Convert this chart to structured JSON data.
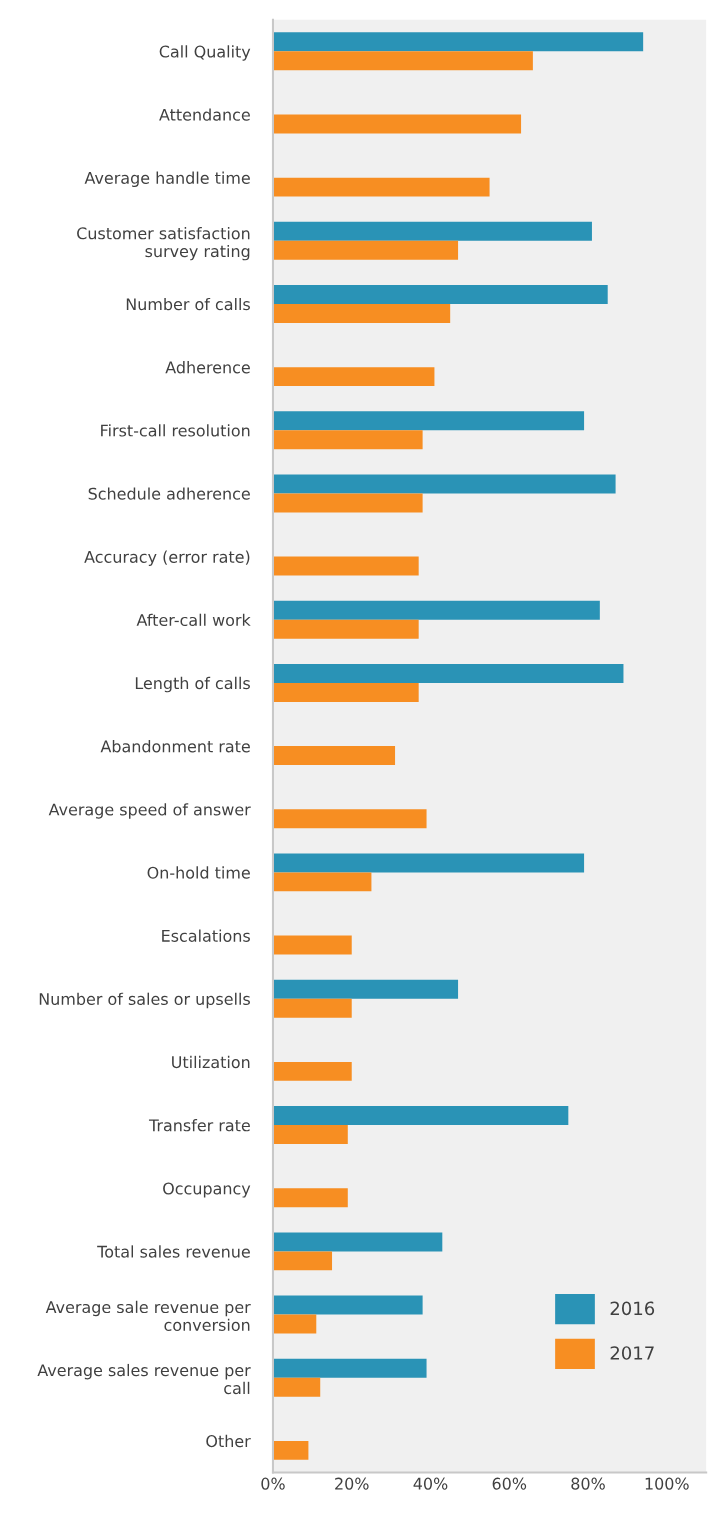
{
  "chart_data": {
    "type": "bar",
    "orientation": "horizontal",
    "categories": [
      "Call Quality",
      "Attendance",
      "Average handle time",
      "Customer satisfaction\nsurvey rating",
      "Number of calls",
      "Adherence",
      "First-call resolution",
      "Schedule adherence",
      "Accuracy (error rate)",
      "After-call work",
      "Length of calls",
      "Abandonment rate",
      "Average speed of answer",
      "On-hold time",
      "Escalations",
      "Number of sales or upsells",
      "Utilization",
      "Transfer rate",
      "Occupancy",
      "Total sales revenue",
      "Average sale revenue per\nconversion",
      "Average sales revenue per\ncall",
      "Other"
    ],
    "series": [
      {
        "name": "2016",
        "color": "#2a93b6",
        "values": [
          94,
          null,
          null,
          81,
          85,
          null,
          79,
          87,
          null,
          83,
          89,
          null,
          null,
          79,
          null,
          47,
          null,
          75,
          null,
          43,
          38,
          39,
          null
        ]
      },
      {
        "name": "2017",
        "color": "#f78e22",
        "values": [
          66,
          63,
          55,
          47,
          45,
          41,
          38,
          38,
          37,
          37,
          37,
          31,
          39,
          25,
          20,
          20,
          20,
          19,
          19,
          15,
          11,
          12,
          9
        ]
      }
    ],
    "xlim": [
      0,
      110
    ],
    "xticks": [
      {
        "value": 0,
        "label": "0%"
      },
      {
        "value": 20,
        "label": "20%"
      },
      {
        "value": 40,
        "label": "40%"
      },
      {
        "value": 60,
        "label": "60%"
      },
      {
        "value": 80,
        "label": "80%"
      },
      {
        "value": 100,
        "label": "100%"
      }
    ],
    "legend": "bottom right",
    "grid": false
  }
}
